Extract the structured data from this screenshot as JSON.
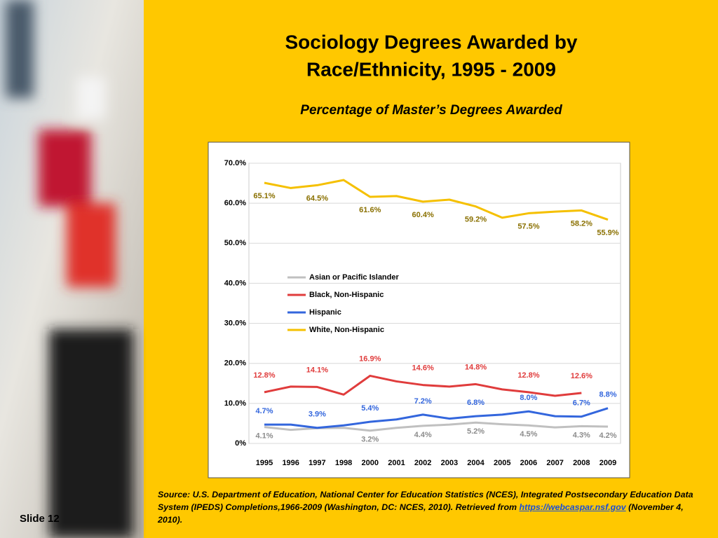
{
  "title": [
    "Sociology Degrees Awarded by",
    "Race/Ethnicity, 1995 - 2009"
  ],
  "subtitle": "Percentage of Master’s Degrees Awarded",
  "chart_data": {
    "type": "line",
    "categories": [
      "1995",
      "1996",
      "1997",
      "1998",
      "2000",
      "2001",
      "2002",
      "2003",
      "2004",
      "2005",
      "2006",
      "2007",
      "2008",
      "2009"
    ],
    "ylim": [
      0,
      70
    ],
    "yticks": [
      {
        "value": 0,
        "label": "0%"
      },
      {
        "value": 10,
        "label": "10.0%"
      },
      {
        "value": 20,
        "label": "20.0%"
      },
      {
        "value": 30,
        "label": "30.0%"
      },
      {
        "value": 40,
        "label": "40.0%"
      },
      {
        "value": 50,
        "label": "50.0%"
      },
      {
        "value": 60,
        "label": "60.0%"
      },
      {
        "value": 70,
        "label": "70.0%"
      }
    ],
    "grid": true,
    "legend": "center-left",
    "series": [
      {
        "name": "Asian or Pacific Islander",
        "color": "#c0c0c0",
        "label_color": "#8c8c8c",
        "values": [
          4.1,
          3.4,
          3.8,
          3.9,
          3.2,
          3.9,
          4.4,
          4.7,
          5.2,
          4.8,
          4.5,
          4.0,
          4.3,
          4.2
        ],
        "value_labels": [
          "4.1%",
          null,
          null,
          null,
          "3.2%",
          null,
          "4.4%",
          null,
          "5.2%",
          null,
          "4.5%",
          null,
          "4.3%",
          "4.2%"
        ]
      },
      {
        "name": "Black, Non-Hispanic",
        "color": "#e03c3c",
        "label_color": "#e03c3c",
        "values": [
          12.8,
          14.2,
          14.1,
          12.2,
          16.9,
          15.5,
          14.6,
          14.2,
          14.8,
          13.5,
          12.8,
          11.9,
          12.6,
          null
        ],
        "value_labels": [
          "12.8%",
          null,
          "14.1%",
          null,
          "16.9%",
          null,
          "14.6%",
          null,
          "14.8%",
          null,
          "12.8%",
          null,
          "12.6%",
          null
        ]
      },
      {
        "name": "Hispanic",
        "color": "#3366dd",
        "label_color": "#3366dd",
        "values": [
          4.7,
          4.7,
          3.9,
          4.5,
          5.4,
          6.0,
          7.2,
          6.2,
          6.8,
          7.2,
          8.0,
          6.8,
          6.7,
          8.8
        ],
        "value_labels": [
          "4.7%",
          null,
          "3.9%",
          null,
          "5.4%",
          null,
          "7.2%",
          null,
          "6.8%",
          null,
          "8.0%",
          null,
          "6.7%",
          "8.8%"
        ]
      },
      {
        "name": "White, Non-Hispanic",
        "color": "#f5c000",
        "label_color": "#8a7000",
        "values": [
          65.1,
          63.8,
          64.5,
          65.8,
          61.6,
          61.8,
          60.4,
          60.9,
          59.2,
          56.4,
          57.5,
          57.9,
          58.2,
          55.9
        ],
        "value_labels": [
          "65.1%",
          null,
          "64.5%",
          null,
          "61.6%",
          null,
          "60.4%",
          null,
          "59.2%",
          null,
          "57.5%",
          null,
          "58.2%",
          "55.9%"
        ]
      }
    ]
  },
  "source": {
    "text": "Source: U.S. Department of Education, National Center for Education Statistics (NCES), Integrated Postsecondary Education Data System (IPEDS) Completions,1966-2009 (Washington, DC: NCES, 2010). Retrieved from",
    "link": "https://webcaspar.nsf.gov",
    "after": "(November 4, 2010)."
  },
  "slide": "Slide 12"
}
